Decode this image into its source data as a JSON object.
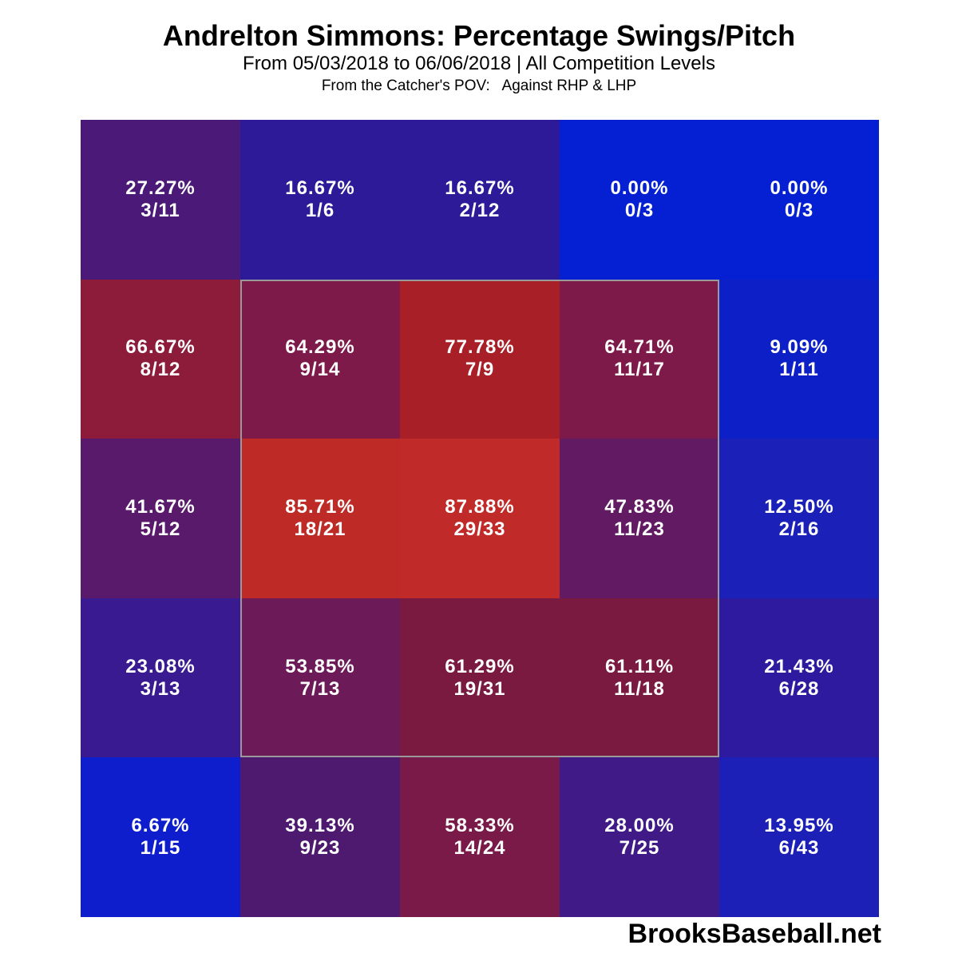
{
  "title": "Andrelton Simmons: Percentage Swings/Pitch",
  "subtitle": "From 05/03/2018 to 06/06/2018 | All Competition Levels",
  "subsubtitle": "From the Catcher's POV:   Against RHP & LHP",
  "footer": "BrooksBaseball.net",
  "chart_data": {
    "type": "heatmap",
    "rows": 5,
    "cols": 5,
    "strike_zone": {
      "row_start": 1,
      "row_end": 3,
      "col_start": 1,
      "col_end": 3
    },
    "cells": [
      [
        {
          "pct": "27.27%",
          "frac": "3/11",
          "value": 27.27,
          "color": "#4b1a78"
        },
        {
          "pct": "16.67%",
          "frac": "1/6",
          "value": 16.67,
          "color": "#2c1a98"
        },
        {
          "pct": "16.67%",
          "frac": "2/12",
          "value": 16.67,
          "color": "#2c1a98"
        },
        {
          "pct": "0.00%",
          "frac": "0/3",
          "value": 0.0,
          "color": "#0520d2"
        },
        {
          "pct": "0.00%",
          "frac": "0/3",
          "value": 0.0,
          "color": "#0520d2"
        }
      ],
      [
        {
          "pct": "66.67%",
          "frac": "8/12",
          "value": 66.67,
          "color": "#8c1c3a"
        },
        {
          "pct": "64.29%",
          "frac": "9/14",
          "value": 64.29,
          "color": "#7e1a4a"
        },
        {
          "pct": "77.78%",
          "frac": "7/9",
          "value": 77.78,
          "color": "#a81f28"
        },
        {
          "pct": "64.71%",
          "frac": "11/17",
          "value": 64.71,
          "color": "#7e1a4a"
        },
        {
          "pct": "9.09%",
          "frac": "1/11",
          "value": 9.09,
          "color": "#0d20c8"
        }
      ],
      [
        {
          "pct": "41.67%",
          "frac": "5/12",
          "value": 41.67,
          "color": "#5a1a6c"
        },
        {
          "pct": "85.71%",
          "frac": "18/21",
          "value": 85.71,
          "color": "#be2a26"
        },
        {
          "pct": "87.88%",
          "frac": "29/33",
          "value": 87.88,
          "color": "#c02a28"
        },
        {
          "pct": "47.83%",
          "frac": "11/23",
          "value": 47.83,
          "color": "#621a62"
        },
        {
          "pct": "12.50%",
          "frac": "2/16",
          "value": 12.5,
          "color": "#1a20b8"
        }
      ],
      [
        {
          "pct": "23.08%",
          "frac": "3/13",
          "value": 23.08,
          "color": "#3a1a90"
        },
        {
          "pct": "53.85%",
          "frac": "7/13",
          "value": 53.85,
          "color": "#6c1a58"
        },
        {
          "pct": "61.29%",
          "frac": "19/31",
          "value": 61.29,
          "color": "#7a1a40"
        },
        {
          "pct": "61.11%",
          "frac": "11/18",
          "value": 61.11,
          "color": "#7a1a40"
        },
        {
          "pct": "21.43%",
          "frac": "6/28",
          "value": 21.43,
          "color": "#2e1a9e"
        }
      ],
      [
        {
          "pct": "6.67%",
          "frac": "1/15",
          "value": 6.67,
          "color": "#0e1ecc"
        },
        {
          "pct": "39.13%",
          "frac": "9/23",
          "value": 39.13,
          "color": "#4e1a70"
        },
        {
          "pct": "58.33%",
          "frac": "14/24",
          "value": 58.33,
          "color": "#7a1a48"
        },
        {
          "pct": "28.00%",
          "frac": "7/25",
          "value": 28.0,
          "color": "#401a86"
        },
        {
          "pct": "13.95%",
          "frac": "6/43",
          "value": 13.95,
          "color": "#1c20b6"
        }
      ]
    ]
  }
}
